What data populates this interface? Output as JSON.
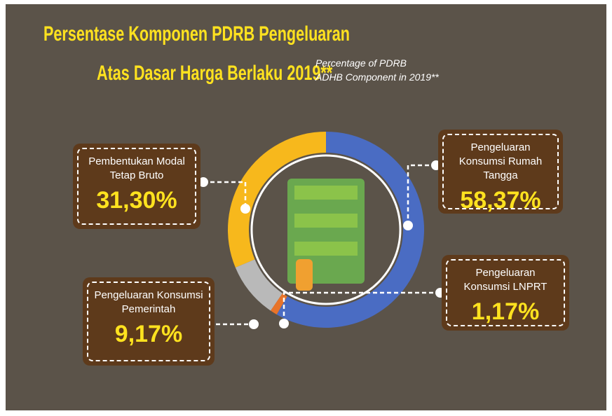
{
  "chart_data": {
    "type": "donut",
    "title": [
      "Persentase Komponen PDRB Pengeluaran",
      "Atas Dasar Harga Berlaku 2019**"
    ],
    "subtitle": [
      "Percentage of PDRB",
      "ADHB Component in 2019**"
    ],
    "categories": [
      "Pengeluaran Konsumsi Rumah Tangga",
      "Pengeluaran Konsumsi LNPRT",
      "Pengeluaran Konsumsi Pemerintah",
      "Pembentukan Modal Tetap Bruto"
    ],
    "values": [
      58.37,
      1.17,
      9.17,
      31.3
    ],
    "value_labels": [
      "58,37%",
      "1,17%",
      "9,17%",
      "31,30%"
    ],
    "colors": [
      "#4a6cc3",
      "#e8742a",
      "#b9b9b9",
      "#f7b81c"
    ]
  }
}
